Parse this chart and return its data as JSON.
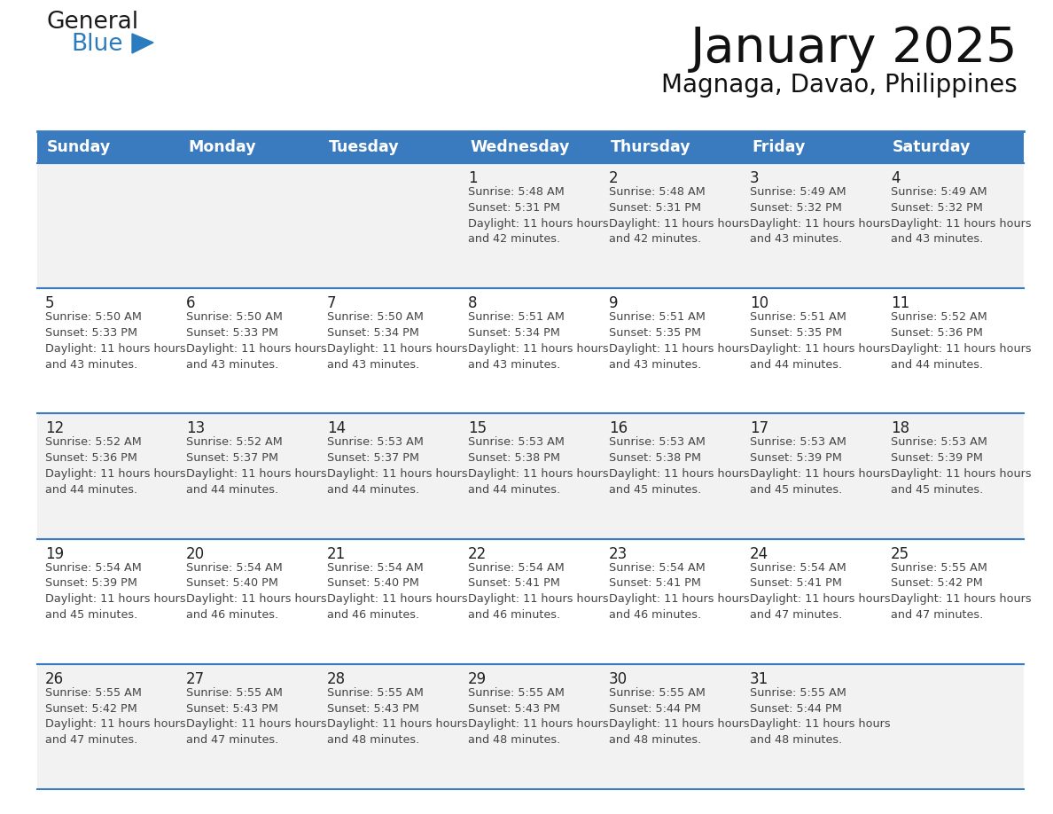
{
  "title": "January 2025",
  "subtitle": "Magnaga, Davao, Philippines",
  "days_of_week": [
    "Sunday",
    "Monday",
    "Tuesday",
    "Wednesday",
    "Thursday",
    "Friday",
    "Saturday"
  ],
  "header_bg_color": "#3a7abf",
  "header_text_color": "#ffffff",
  "row_bg_even": "#f2f2f2",
  "row_bg_odd": "#ffffff",
  "grid_line_color": "#3a7abf",
  "day_num_color": "#222222",
  "cell_text_color": "#444444",
  "title_color": "#111111",
  "subtitle_color": "#111111",
  "logo_general_color": "#1a1a1a",
  "logo_blue_color": "#2b7bbf",
  "calendar": [
    [
      null,
      null,
      null,
      {
        "day": 1,
        "sunrise": "5:48 AM",
        "sunset": "5:31 PM",
        "daylight": "11 hours and 42 minutes."
      },
      {
        "day": 2,
        "sunrise": "5:48 AM",
        "sunset": "5:31 PM",
        "daylight": "11 hours and 42 minutes."
      },
      {
        "day": 3,
        "sunrise": "5:49 AM",
        "sunset": "5:32 PM",
        "daylight": "11 hours and 43 minutes."
      },
      {
        "day": 4,
        "sunrise": "5:49 AM",
        "sunset": "5:32 PM",
        "daylight": "11 hours and 43 minutes."
      }
    ],
    [
      {
        "day": 5,
        "sunrise": "5:50 AM",
        "sunset": "5:33 PM",
        "daylight": "11 hours and 43 minutes."
      },
      {
        "day": 6,
        "sunrise": "5:50 AM",
        "sunset": "5:33 PM",
        "daylight": "11 hours and 43 minutes."
      },
      {
        "day": 7,
        "sunrise": "5:50 AM",
        "sunset": "5:34 PM",
        "daylight": "11 hours and 43 minutes."
      },
      {
        "day": 8,
        "sunrise": "5:51 AM",
        "sunset": "5:34 PM",
        "daylight": "11 hours and 43 minutes."
      },
      {
        "day": 9,
        "sunrise": "5:51 AM",
        "sunset": "5:35 PM",
        "daylight": "11 hours and 43 minutes."
      },
      {
        "day": 10,
        "sunrise": "5:51 AM",
        "sunset": "5:35 PM",
        "daylight": "11 hours and 44 minutes."
      },
      {
        "day": 11,
        "sunrise": "5:52 AM",
        "sunset": "5:36 PM",
        "daylight": "11 hours and 44 minutes."
      }
    ],
    [
      {
        "day": 12,
        "sunrise": "5:52 AM",
        "sunset": "5:36 PM",
        "daylight": "11 hours and 44 minutes."
      },
      {
        "day": 13,
        "sunrise": "5:52 AM",
        "sunset": "5:37 PM",
        "daylight": "11 hours and 44 minutes."
      },
      {
        "day": 14,
        "sunrise": "5:53 AM",
        "sunset": "5:37 PM",
        "daylight": "11 hours and 44 minutes."
      },
      {
        "day": 15,
        "sunrise": "5:53 AM",
        "sunset": "5:38 PM",
        "daylight": "11 hours and 44 minutes."
      },
      {
        "day": 16,
        "sunrise": "5:53 AM",
        "sunset": "5:38 PM",
        "daylight": "11 hours and 45 minutes."
      },
      {
        "day": 17,
        "sunrise": "5:53 AM",
        "sunset": "5:39 PM",
        "daylight": "11 hours and 45 minutes."
      },
      {
        "day": 18,
        "sunrise": "5:53 AM",
        "sunset": "5:39 PM",
        "daylight": "11 hours and 45 minutes."
      }
    ],
    [
      {
        "day": 19,
        "sunrise": "5:54 AM",
        "sunset": "5:39 PM",
        "daylight": "11 hours and 45 minutes."
      },
      {
        "day": 20,
        "sunrise": "5:54 AM",
        "sunset": "5:40 PM",
        "daylight": "11 hours and 46 minutes."
      },
      {
        "day": 21,
        "sunrise": "5:54 AM",
        "sunset": "5:40 PM",
        "daylight": "11 hours and 46 minutes."
      },
      {
        "day": 22,
        "sunrise": "5:54 AM",
        "sunset": "5:41 PM",
        "daylight": "11 hours and 46 minutes."
      },
      {
        "day": 23,
        "sunrise": "5:54 AM",
        "sunset": "5:41 PM",
        "daylight": "11 hours and 46 minutes."
      },
      {
        "day": 24,
        "sunrise": "5:54 AM",
        "sunset": "5:41 PM",
        "daylight": "11 hours and 47 minutes."
      },
      {
        "day": 25,
        "sunrise": "5:55 AM",
        "sunset": "5:42 PM",
        "daylight": "11 hours and 47 minutes."
      }
    ],
    [
      {
        "day": 26,
        "sunrise": "5:55 AM",
        "sunset": "5:42 PM",
        "daylight": "11 hours and 47 minutes."
      },
      {
        "day": 27,
        "sunrise": "5:55 AM",
        "sunset": "5:43 PM",
        "daylight": "11 hours and 47 minutes."
      },
      {
        "day": 28,
        "sunrise": "5:55 AM",
        "sunset": "5:43 PM",
        "daylight": "11 hours and 48 minutes."
      },
      {
        "day": 29,
        "sunrise": "5:55 AM",
        "sunset": "5:43 PM",
        "daylight": "11 hours and 48 minutes."
      },
      {
        "day": 30,
        "sunrise": "5:55 AM",
        "sunset": "5:44 PM",
        "daylight": "11 hours and 48 minutes."
      },
      {
        "day": 31,
        "sunrise": "5:55 AM",
        "sunset": "5:44 PM",
        "daylight": "11 hours and 48 minutes."
      },
      null
    ]
  ],
  "figsize": [
    11.88,
    9.18
  ],
  "dpi": 100
}
